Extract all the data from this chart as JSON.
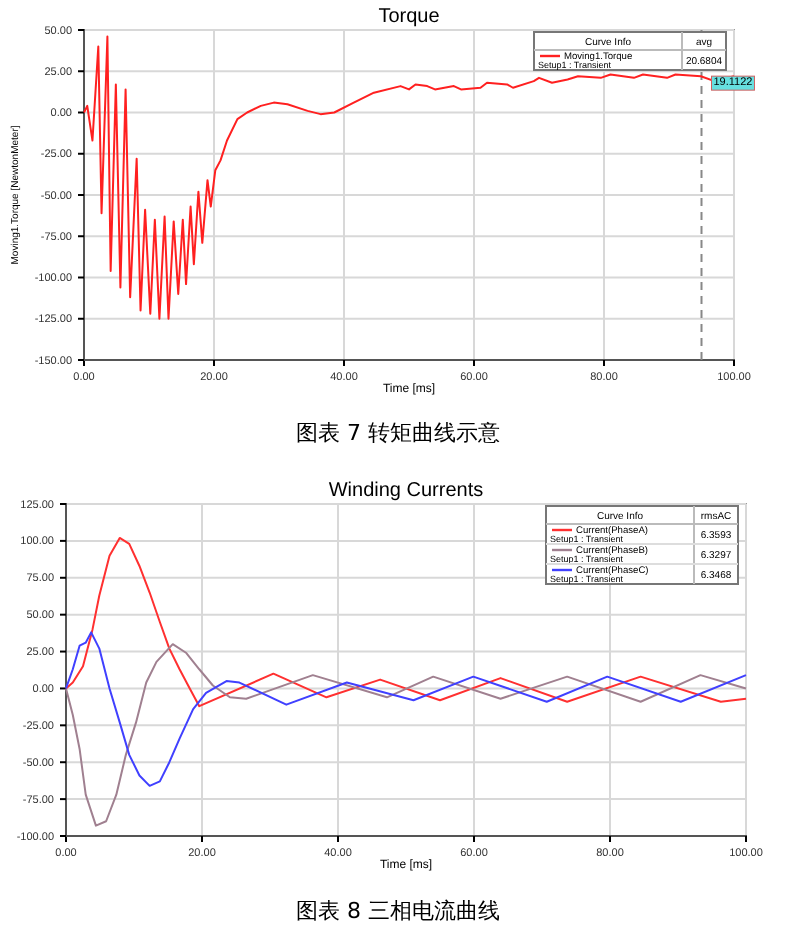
{
  "chart_data": [
    {
      "type": "line",
      "title": "Torque",
      "xlabel": "Time [ms]",
      "ylabel": "Moving1.Torque [NewtonMeter]",
      "legend_title": "Curve Info",
      "legend": "top right",
      "grid": true,
      "line_style": "solid",
      "xlim": [
        0,
        100
      ],
      "ylim": [
        -150,
        50
      ],
      "xticks": [
        {
          "value": 0,
          "label": "0.00"
        },
        {
          "value": 20,
          "label": "20.00"
        },
        {
          "value": 40,
          "label": "40.00"
        },
        {
          "value": 60,
          "label": "60.00"
        },
        {
          "value": 80,
          "label": "80.00"
        },
        {
          "value": 100,
          "label": "100.00"
        }
      ],
      "yticks": [
        {
          "value": -150,
          "label": "-150.00"
        },
        {
          "value": -125,
          "label": "-125.00"
        },
        {
          "value": -100,
          "label": "-100.00"
        },
        {
          "value": -75,
          "label": "-75.00"
        },
        {
          "value": -50,
          "label": "-50.00"
        },
        {
          "value": -25,
          "label": "-25.00"
        },
        {
          "value": 0,
          "label": "0.00"
        },
        {
          "value": 25,
          "label": "25.00"
        },
        {
          "value": 50,
          "label": "50.00"
        }
      ],
      "ref_lines": [
        {
          "axis": "x",
          "value": 95,
          "color": "#888888",
          "line_style": "dashed"
        }
      ],
      "annotations": [
        "avg",
        "20.6804",
        "Setup1 : Transient",
        {
          "text": "19.1122",
          "x": 95,
          "y": 19
        },
        "图表 7 转矩曲线示意"
      ],
      "series": [
        {
          "name": "Moving1.Torque",
          "color": "#ff2020",
          "x": [
            0,
            0.5,
            1.3,
            2.2,
            2.7,
            3.6,
            4.1,
            4.9,
            5.6,
            6.4,
            7.1,
            8.1,
            8.7,
            9.4,
            10.2,
            10.9,
            11.6,
            12.4,
            13,
            13.8,
            14.5,
            15.2,
            15.7,
            16.4,
            16.9,
            17.6,
            18.2,
            19,
            19.5,
            20.2,
            21,
            22,
            23.6,
            25.1,
            27.2,
            29.2,
            31.3,
            34.4,
            36.4,
            38.5,
            41.5,
            44.6,
            48.7,
            50,
            51,
            52.8,
            54,
            56.9,
            58,
            61,
            62,
            65.1,
            66,
            69.2,
            70,
            72,
            74.4,
            76,
            79.5,
            81,
            84.6,
            86,
            89.7,
            91,
            94.9,
            97,
            100
          ],
          "values": [
            0,
            4,
            -17,
            40,
            -61,
            46,
            -96,
            17,
            -106,
            14,
            -112,
            -28,
            -120,
            -59,
            -122,
            -65,
            -125,
            -63,
            -125,
            -66,
            -110,
            -65,
            -104,
            -57,
            -92,
            -48,
            -79,
            -41,
            -57,
            -35,
            -29,
            -17,
            -4,
            0,
            4,
            6,
            5,
            1,
            -1,
            0,
            6,
            12,
            16,
            14,
            17,
            16,
            14,
            16,
            14,
            15,
            18,
            17,
            15,
            19,
            21,
            18,
            20,
            22,
            21,
            23,
            21,
            23,
            21,
            23,
            22,
            19,
            22
          ]
        }
      ]
    },
    {
      "type": "line",
      "title": "Winding Currents",
      "xlabel": "Time [ms]",
      "legend_title": "Curve Info",
      "legend": "top right",
      "grid": true,
      "line_style": "solid",
      "xlim": [
        0,
        100
      ],
      "ylim": [
        -100,
        125
      ],
      "xticks": [
        {
          "value": 0,
          "label": "0.00"
        },
        {
          "value": 20,
          "label": "20.00"
        },
        {
          "value": 40,
          "label": "40.00"
        },
        {
          "value": 60,
          "label": "60.00"
        },
        {
          "value": 80,
          "label": "80.00"
        },
        {
          "value": 100,
          "label": "100.00"
        }
      ],
      "yticks": [
        {
          "value": -100,
          "label": "-100.00"
        },
        {
          "value": -75,
          "label": "-75.00"
        },
        {
          "value": -50,
          "label": "-50.00"
        },
        {
          "value": -25,
          "label": "-25.00"
        },
        {
          "value": 0,
          "label": "0.00"
        },
        {
          "value": 25,
          "label": "25.00"
        },
        {
          "value": 50,
          "label": "50.00"
        },
        {
          "value": 75,
          "label": "75.00"
        },
        {
          "value": 100,
          "label": "100.00"
        },
        {
          "value": 125,
          "label": "125.00"
        }
      ],
      "annotations": [
        "rmsAC",
        "6.3593",
        "6.3297",
        "6.3468",
        "Setup1 : Transient",
        "Setup1 : Transient",
        "Setup1 : Transient",
        "图表 8 三相电流曲线"
      ],
      "series": [
        {
          "name": "Current(PhaseA)",
          "color": "#ff3030",
          "x": [
            0,
            1,
            2.5,
            3.9,
            4.9,
            6.4,
            7.9,
            9.3,
            10.8,
            12.3,
            13.8,
            15.2,
            16.7,
            18.2,
            19.6,
            30.5,
            38.3,
            46.2,
            55,
            63.9,
            73.7,
            84.5,
            96.3,
            100
          ],
          "values": [
            0,
            4,
            15,
            40,
            63,
            90,
            102,
            98,
            83,
            65,
            45,
            27,
            13,
            0,
            -12,
            10,
            -6,
            6,
            -8,
            7,
            -9,
            8,
            -9,
            -7
          ]
        },
        {
          "name": "Current(PhaseB)",
          "color": "#a08090",
          "x": [
            0,
            1,
            2,
            2.9,
            4.4,
            5.9,
            7.4,
            8.8,
            10.3,
            11.8,
            13.3,
            15.7,
            17.7,
            19.6,
            21.6,
            24.1,
            26.5,
            36.3,
            47.2,
            54,
            63.9,
            73.7,
            84.5,
            93.3,
            100
          ],
          "values": [
            0,
            -18,
            -41,
            -72,
            -93,
            -90,
            -72,
            -45,
            -23,
            4,
            18,
            30,
            24,
            13,
            2,
            -6,
            -7,
            9,
            -6,
            8,
            -7,
            8,
            -9,
            9,
            0
          ]
        },
        {
          "name": "Current(PhaseC)",
          "color": "#4040ff",
          "x": [
            0,
            1,
            2,
            2.9,
            3.7,
            4.9,
            6.4,
            7.9,
            9.3,
            10.8,
            12.3,
            13.8,
            15.2,
            16.7,
            18.7,
            20.6,
            23.6,
            25.5,
            32.4,
            41.3,
            51.1,
            59.9,
            70.7,
            79.6,
            90.4,
            100
          ],
          "values": [
            0,
            13,
            29,
            31,
            38,
            27,
            0,
            -23,
            -45,
            -59,
            -66,
            -63,
            -50,
            -34,
            -14,
            -3,
            5,
            4,
            -11,
            4,
            -8,
            8,
            -9,
            8,
            -9,
            9
          ]
        }
      ]
    }
  ]
}
